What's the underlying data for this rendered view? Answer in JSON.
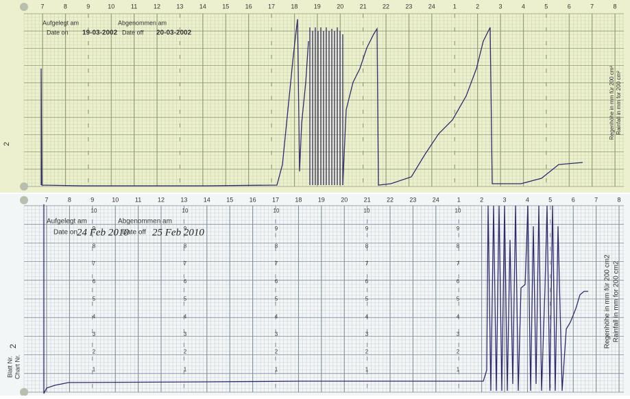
{
  "top_chart": {
    "hours": [
      "7",
      "8",
      "9",
      "10",
      "11",
      "12",
      "13",
      "14",
      "15",
      "16",
      "17",
      "18",
      "19",
      "20",
      "21",
      "22",
      "23",
      "24",
      "1",
      "2",
      "3",
      "4",
      "5",
      "6",
      "7",
      "8"
    ],
    "date_on_label_de": "Aufgelegt am",
    "date_on_label_en": "Date on",
    "date_on": "19-03-2002",
    "date_off_label_de": "Abgenommen am",
    "date_off_label_en": "Date off",
    "date_off": "20-03-2002",
    "side_note": [
      "Regenhöhe in mm für 200 cm²",
      "Rainfall in mm for 200 cm²"
    ],
    "chart_no": "2"
  },
  "bottom_chart": {
    "hours": [
      "7",
      "8",
      "9",
      "10",
      "11",
      "12",
      "13",
      "14",
      "15",
      "16",
      "17",
      "18",
      "19",
      "20",
      "21",
      "22",
      "23",
      "24",
      "1",
      "2",
      "3",
      "4",
      "5",
      "6",
      "7",
      "8"
    ],
    "date_on_label_de": "Aufgelegt am",
    "date_on_label_en": "Date on",
    "date_on": "24 Feb 2010",
    "date_off_label_de": "Abgenommen am",
    "date_off_label_en": "Date off",
    "date_off": "25 Feb 2010",
    "scale": [
      "10",
      "9",
      "8",
      "7",
      "6",
      "5",
      "4",
      "3",
      "2",
      "1"
    ],
    "side_note": [
      "Regenhöhe in mm für 200 cm2",
      "Rainfall in mm for 200 cm2"
    ],
    "sheet_label": "Blatt Nr.",
    "chart_label": "Chart Nr.",
    "chart_no": "2"
  }
}
